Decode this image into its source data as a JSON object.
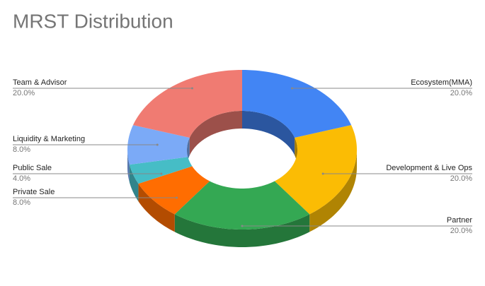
{
  "chart_data": {
    "type": "donut",
    "title": "MRST Distribution",
    "categories": [
      "Ecosystem(MMA)",
      "Development & Live Ops",
      "Partner",
      "Private Sale",
      "Public Sale",
      "Liquidity & Marketing",
      "Team & Advisor"
    ],
    "values": [
      20,
      20,
      20,
      8,
      4,
      8,
      20
    ],
    "value_labels": [
      "20.0%",
      "20.0%",
      "20.0%",
      "8.0%",
      "4.0%",
      "8.0%",
      "20.0%"
    ],
    "colors": [
      "#4285f4",
      "#fbbc04",
      "#34a853",
      "#ff6d01",
      "#46bdc6",
      "#7baaf7",
      "#f07b72"
    ],
    "three_d": true
  }
}
